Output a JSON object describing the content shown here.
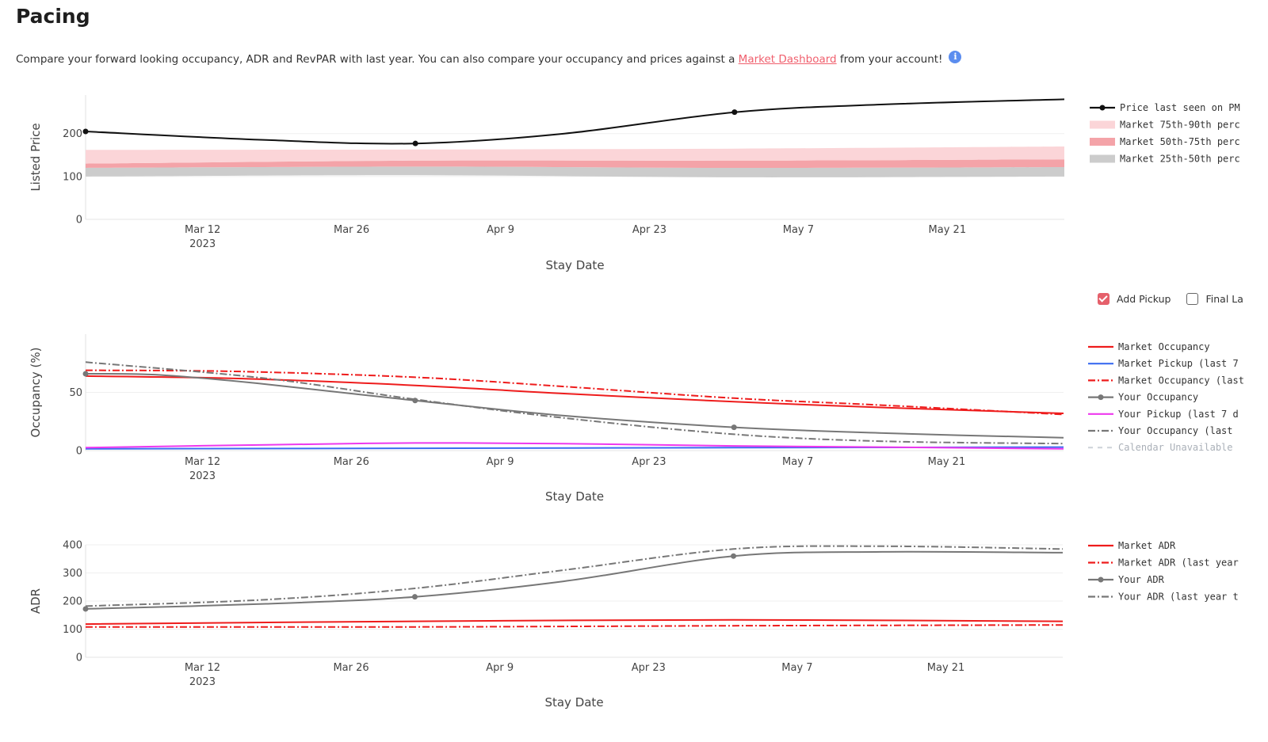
{
  "page": {
    "title": "Pacing",
    "intro_before": "Compare your forward looking occupancy, ADR and RevPAR with last year. You can also compare your occupancy and prices against a ",
    "intro_link": "Market Dashboard",
    "intro_after": " from your account!",
    "info_icon": "info-icon"
  },
  "toggles": [
    {
      "label": "Add Pickup",
      "checked": true
    },
    {
      "label": "Final La",
      "checked": false
    }
  ],
  "chart_data": [
    {
      "type": "line",
      "ylabel": "Listed Price",
      "xlabel": "Stay Date",
      "x_range": [
        "2023-03-01",
        "2023-06-01"
      ],
      "ylim": [
        0,
        290
      ],
      "y_ticks": [
        0,
        100,
        200
      ],
      "x_ticks": [
        {
          "date": "2023-03-12",
          "label": "Mar 12",
          "sub": "2023"
        },
        {
          "date": "2023-03-26",
          "label": "Mar 26",
          "sub": ""
        },
        {
          "date": "2023-04-09",
          "label": "Apr 9",
          "sub": ""
        },
        {
          "date": "2023-04-23",
          "label": "Apr 23",
          "sub": ""
        },
        {
          "date": "2023-05-07",
          "label": "May 7",
          "sub": ""
        },
        {
          "date": "2023-05-21",
          "label": "May 21",
          "sub": ""
        }
      ],
      "bands": [
        {
          "name": "Market 25th-50th perc",
          "color": "#cccccc",
          "dates": [
            "2023-03-01",
            "2023-04-01",
            "2023-05-01",
            "2023-06-01"
          ],
          "low": [
            100,
            103,
            98,
            100
          ],
          "high": [
            120,
            123,
            120,
            122
          ]
        },
        {
          "name": "Market 50th-75th perc",
          "color": "#f4a3a8",
          "dates": [
            "2023-03-01",
            "2023-04-01",
            "2023-05-01",
            "2023-06-01"
          ],
          "low": [
            120,
            123,
            120,
            122
          ],
          "high": [
            130,
            137,
            137,
            140
          ]
        },
        {
          "name": "Market 75th-90th perc",
          "color": "#fbd5d8",
          "dates": [
            "2023-03-01",
            "2023-04-01",
            "2023-05-01",
            "2023-06-01"
          ],
          "low": [
            130,
            137,
            137,
            140
          ],
          "high": [
            162,
            163,
            165,
            170
          ]
        }
      ],
      "series": [
        {
          "name": "Price last seen on PM",
          "color": "#111111",
          "dash": "",
          "markers": [
            0,
            2,
            4
          ],
          "dates": [
            "2023-03-01",
            "2023-03-18",
            "2023-04-01",
            "2023-04-15",
            "2023-05-01",
            "2023-05-15",
            "2023-06-01"
          ],
          "values": [
            205,
            185,
            177,
            200,
            250,
            268,
            280
          ]
        }
      ],
      "legend_order": [
        0,
        "b2",
        "b1",
        "b0"
      ]
    },
    {
      "type": "line",
      "ylabel": "Occupancy (%)",
      "xlabel": "Stay Date",
      "x_range": [
        "2023-03-01",
        "2023-06-01"
      ],
      "ylim": [
        0,
        100
      ],
      "y_ticks": [
        0,
        50
      ],
      "x_ticks": [
        {
          "date": "2023-03-12",
          "label": "Mar 12",
          "sub": "2023"
        },
        {
          "date": "2023-03-26",
          "label": "Mar 26",
          "sub": ""
        },
        {
          "date": "2023-04-09",
          "label": "Apr 9",
          "sub": ""
        },
        {
          "date": "2023-04-23",
          "label": "Apr 23",
          "sub": ""
        },
        {
          "date": "2023-05-07",
          "label": "May 7",
          "sub": ""
        },
        {
          "date": "2023-05-21",
          "label": "May 21",
          "sub": ""
        }
      ],
      "series": [
        {
          "name": "Market Occupancy",
          "color": "#ee1c1c",
          "dash": "",
          "markers": [],
          "dates": [
            "2023-03-01",
            "2023-03-15",
            "2023-04-01",
            "2023-04-15",
            "2023-05-01",
            "2023-05-15",
            "2023-06-01"
          ],
          "values": [
            64,
            62,
            56,
            49,
            42,
            37,
            32
          ]
        },
        {
          "name": "Market Pickup (last 7",
          "color": "#3b6cf0",
          "dash": "",
          "markers": [],
          "dates": [
            "2023-03-01",
            "2023-04-01",
            "2023-05-01",
            "2023-06-01"
          ],
          "values": [
            1.5,
            2,
            2.5,
            3
          ]
        },
        {
          "name": "Market Occupancy (last",
          "color": "#ee1c1c",
          "dash": "9,3,2,3",
          "markers": [],
          "dates": [
            "2023-03-01",
            "2023-03-15",
            "2023-04-01",
            "2023-04-15",
            "2023-05-01",
            "2023-05-15",
            "2023-06-01"
          ],
          "values": [
            69,
            68,
            63,
            55,
            45,
            39,
            31
          ]
        },
        {
          "name": "Your Occupancy",
          "color": "#777777",
          "dash": "",
          "markers": [
            0,
            3,
            5
          ],
          "dates": [
            "2023-03-01",
            "2023-03-08",
            "2023-03-18",
            "2023-04-01",
            "2023-04-15",
            "2023-05-01",
            "2023-05-15",
            "2023-06-01"
          ],
          "values": [
            66,
            65,
            57,
            43,
            30,
            20,
            15,
            11
          ]
        },
        {
          "name": "Your Pickup (last 7 d",
          "color": "#ee38ee",
          "dash": "",
          "markers": [],
          "dates": [
            "2023-03-01",
            "2023-03-18",
            "2023-04-01",
            "2023-04-15",
            "2023-05-01",
            "2023-05-15",
            "2023-06-01"
          ],
          "values": [
            2.5,
            5,
            6.5,
            6,
            4,
            3,
            1.5
          ]
        },
        {
          "name": "Your Occupancy (last",
          "color": "#777777",
          "dash": "9,3,2,3",
          "markers": [],
          "dates": [
            "2023-03-01",
            "2023-03-18",
            "2023-04-01",
            "2023-04-15",
            "2023-05-01",
            "2023-05-15",
            "2023-06-01"
          ],
          "values": [
            76,
            62,
            44,
            28,
            14,
            8,
            6
          ]
        },
        {
          "name": "Calendar Unavailable",
          "color": "#cfd4da",
          "dash": "6,6",
          "markers": [],
          "legend_only": true,
          "dates": [],
          "values": []
        }
      ],
      "legend_order": [
        0,
        1,
        2,
        3,
        4,
        5,
        6
      ]
    },
    {
      "type": "line",
      "ylabel": "ADR",
      "xlabel": "Stay Date",
      "x_range": [
        "2023-03-01",
        "2023-06-01"
      ],
      "ylim": [
        0,
        400
      ],
      "y_ticks": [
        0,
        100,
        200,
        300,
        400
      ],
      "x_ticks": [
        {
          "date": "2023-03-12",
          "label": "Mar 12",
          "sub": "2023"
        },
        {
          "date": "2023-03-26",
          "label": "Mar 26",
          "sub": ""
        },
        {
          "date": "2023-04-09",
          "label": "Apr 9",
          "sub": ""
        },
        {
          "date": "2023-04-23",
          "label": "Apr 23",
          "sub": ""
        },
        {
          "date": "2023-05-07",
          "label": "May 7",
          "sub": ""
        },
        {
          "date": "2023-05-21",
          "label": "May 21",
          "sub": ""
        }
      ],
      "series": [
        {
          "name": "Market ADR",
          "color": "#ee1c1c",
          "dash": "",
          "markers": [],
          "dates": [
            "2023-03-01",
            "2023-04-01",
            "2023-05-01",
            "2023-06-01"
          ],
          "values": [
            118,
            128,
            133,
            128
          ]
        },
        {
          "name": "Market ADR (last year",
          "color": "#ee1c1c",
          "dash": "9,3,2,3",
          "markers": [],
          "dates": [
            "2023-03-01",
            "2023-04-01",
            "2023-05-01",
            "2023-06-01"
          ],
          "values": [
            108,
            108,
            112,
            115
          ]
        },
        {
          "name": "Your ADR",
          "color": "#777777",
          "dash": "",
          "markers": [
            0,
            2,
            4
          ],
          "dates": [
            "2023-03-01",
            "2023-03-18",
            "2023-04-01",
            "2023-04-15",
            "2023-05-01",
            "2023-05-15",
            "2023-06-01"
          ],
          "values": [
            172,
            190,
            215,
            270,
            360,
            375,
            372
          ]
        },
        {
          "name": "Your ADR (last year t",
          "color": "#777777",
          "dash": "9,3,2,3",
          "markers": [],
          "dates": [
            "2023-03-01",
            "2023-03-18",
            "2023-04-01",
            "2023-04-15",
            "2023-05-01",
            "2023-05-15",
            "2023-06-01"
          ],
          "values": [
            182,
            205,
            245,
            310,
            385,
            395,
            385
          ]
        }
      ],
      "legend_order": [
        0,
        1,
        2,
        3
      ]
    }
  ]
}
